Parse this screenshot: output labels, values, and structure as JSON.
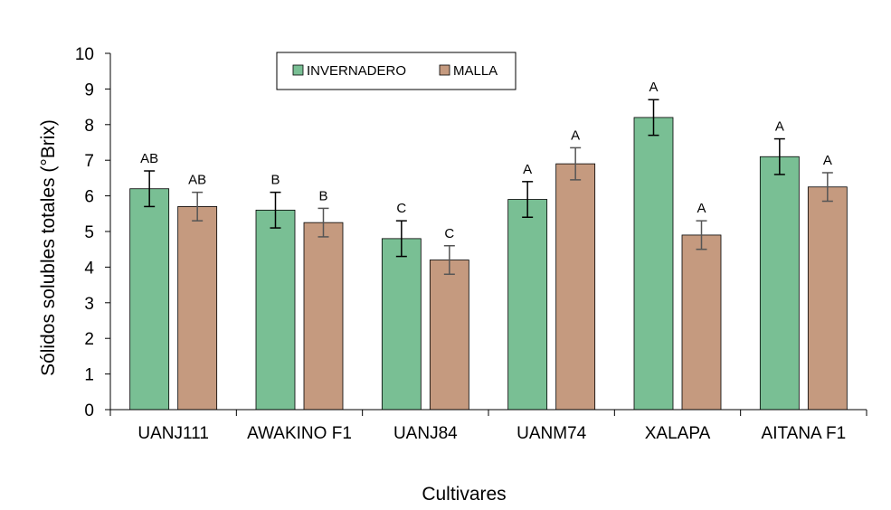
{
  "chart_data": {
    "type": "bar",
    "title": "",
    "xlabel": "Cultivares",
    "ylabel": "Sólidos solubles totales (°Brix)",
    "ylim": [
      0,
      10
    ],
    "yticks": [
      "0",
      "1",
      "2",
      "3",
      "4",
      "5",
      "6",
      "7",
      "8",
      "9",
      "10"
    ],
    "grid": false,
    "legend_position": "top-left",
    "categories": [
      "UANJ111",
      "AWAKINO F1",
      "UANJ84",
      "UANM74",
      "XALAPA",
      "AITANA F1"
    ],
    "series": [
      {
        "name": "INVERNADERO",
        "color": "#79bf94",
        "values": [
          6.2,
          5.6,
          4.8,
          5.9,
          8.2,
          7.1
        ],
        "errors": [
          0.5,
          0.5,
          0.5,
          0.5,
          0.5,
          0.5
        ],
        "labels": [
          "AB",
          "B",
          "C",
          "A",
          "A",
          "A"
        ]
      },
      {
        "name": "MALLA",
        "color": "#c59a7f",
        "values": [
          5.7,
          5.25,
          4.2,
          6.9,
          4.9,
          6.25
        ],
        "errors": [
          0.4,
          0.4,
          0.4,
          0.45,
          0.4,
          0.4
        ],
        "labels": [
          "AB",
          "B",
          "C",
          "A",
          "A",
          "A"
        ]
      }
    ]
  }
}
